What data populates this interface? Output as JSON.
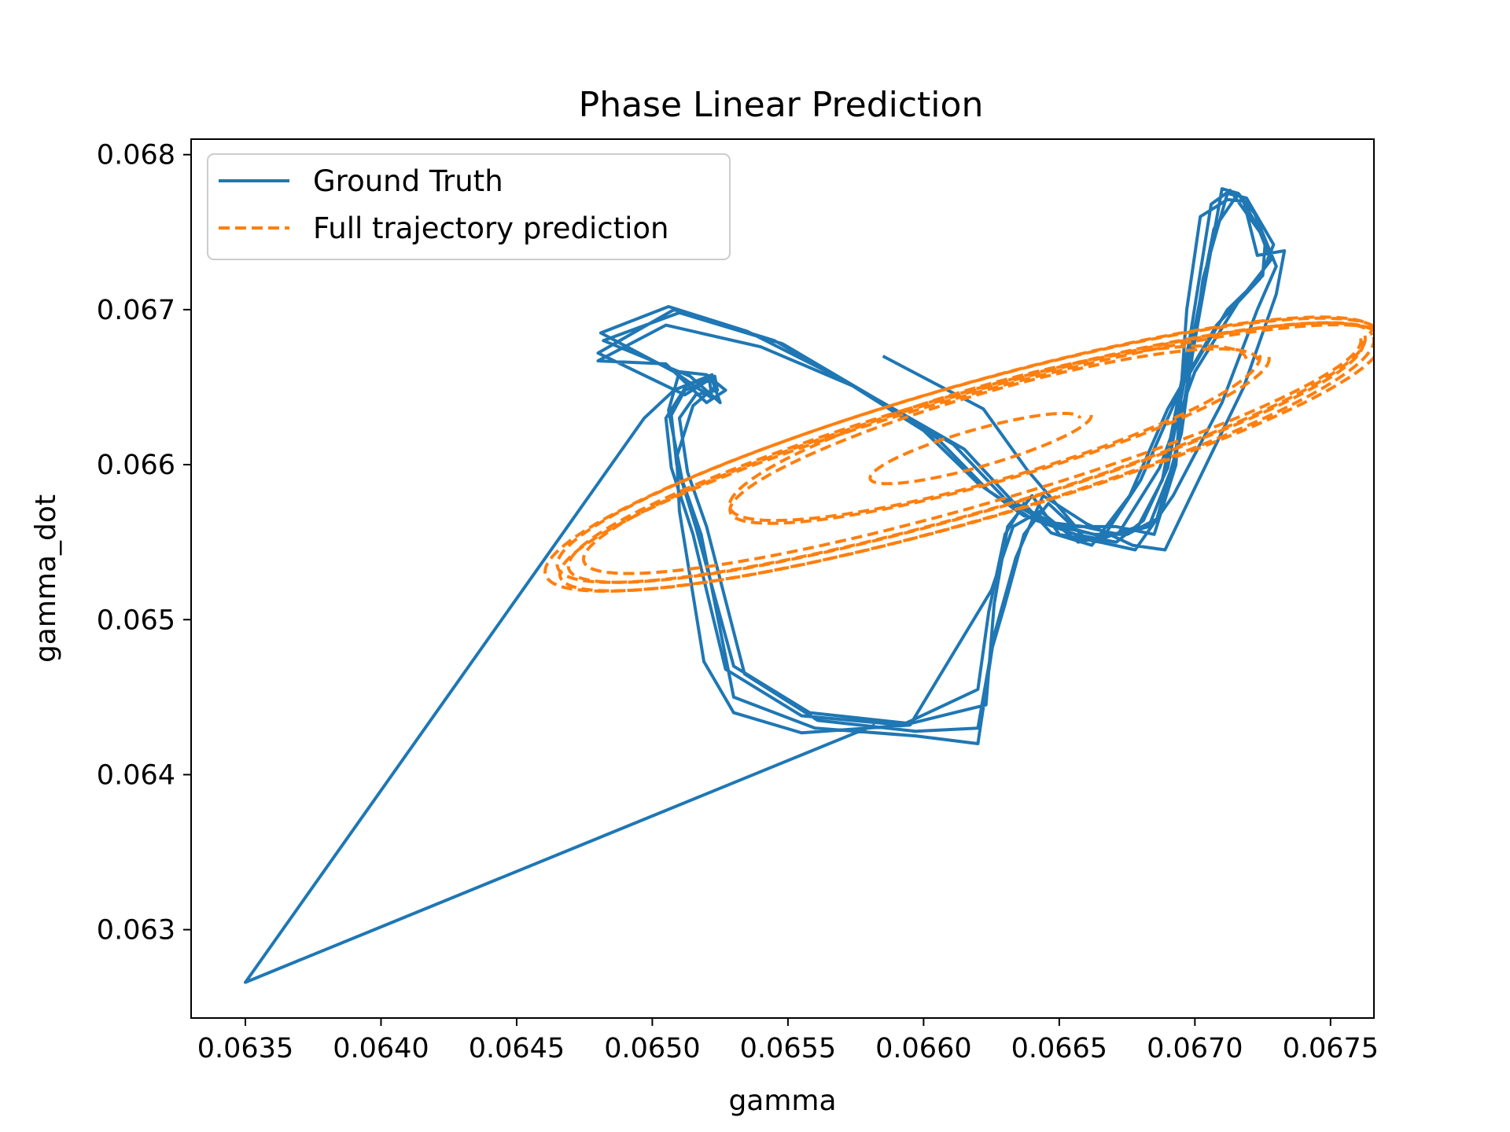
{
  "chart_data": {
    "type": "line",
    "title": "Phase Linear Prediction",
    "xlabel": "gamma",
    "ylabel": "gamma_dot",
    "xlim": [
      0.0633,
      0.06766
    ],
    "ylim": [
      0.06243,
      0.0681
    ],
    "xticks": [
      "0.0635",
      "0.0640",
      "0.0645",
      "0.0650",
      "0.0655",
      "0.0660",
      "0.0665",
      "0.0670",
      "0.0675"
    ],
    "xtick_values": [
      0.0635,
      0.064,
      0.0645,
      0.065,
      0.0655,
      0.066,
      0.0665,
      0.067,
      0.0675
    ],
    "yticks": [
      "0.063",
      "0.064",
      "0.065",
      "0.066",
      "0.067",
      "0.068"
    ],
    "ytick_values": [
      0.063,
      0.064,
      0.065,
      0.066,
      0.067,
      0.068
    ],
    "grid": false,
    "legend_position": "upper-left",
    "series": [
      {
        "name": "Ground Truth",
        "color": "#1f77b4",
        "style": "solid",
        "x": [
          0.06585,
          0.06622,
          0.06638,
          0.06656,
          0.06671,
          0.06685,
          0.06693,
          0.06697,
          0.06702,
          0.06712,
          0.06718,
          0.06723,
          0.06733,
          0.0673,
          0.06718,
          0.067,
          0.06689,
          0.06677,
          0.0666,
          0.06644,
          0.06634,
          0.06626,
          0.0662,
          0.06597,
          0.0656,
          0.0653,
          0.06518,
          0.06511,
          0.06506,
          0.0651,
          0.0652,
          0.06527,
          0.0652,
          0.06505,
          0.0648,
          0.06505,
          0.0654,
          0.06575,
          0.06605,
          0.06624,
          0.0664,
          0.06656,
          0.06671,
          0.06681,
          0.0669,
          0.06699,
          0.06707,
          0.06716,
          0.06722,
          0.0673,
          0.06723,
          0.0671,
          0.06692,
          0.06678,
          0.0666,
          0.06646,
          0.06637,
          0.0663,
          0.06625,
          0.0662,
          0.06597,
          0.06561,
          0.06534,
          0.0652,
          0.06513,
          0.0651,
          0.06516,
          0.06524,
          0.06523,
          0.06512,
          0.0648,
          0.06508,
          0.06545,
          0.0658,
          0.06611,
          0.0663,
          0.06645,
          0.06659,
          0.06672,
          0.06683,
          0.06692,
          0.06702,
          0.0671,
          0.06716,
          0.06726,
          0.06725,
          0.06712,
          0.06695,
          0.0668,
          0.06665,
          0.0665,
          0.0664,
          0.06631,
          0.06626,
          0.06623,
          0.06595,
          0.06558,
          0.0653,
          0.06516,
          0.06509,
          0.06507,
          0.06512,
          0.06522,
          0.06525,
          0.06514,
          0.06482,
          0.0651,
          0.06548,
          0.06582,
          0.06615,
          0.06633,
          0.0665,
          0.06663,
          0.06675,
          0.06686,
          0.06695,
          0.06703,
          0.06712,
          0.06719,
          0.06729,
          0.06724,
          0.06708,
          0.0669,
          0.06676,
          0.06662,
          0.06647,
          0.06637,
          0.0663,
          0.06624,
          0.0662,
          0.06592,
          0.06555,
          0.06527,
          0.06515,
          0.06507,
          0.06505,
          0.06513,
          0.06521,
          0.06522,
          0.06508,
          0.06481,
          0.06506,
          0.06535,
          0.0657,
          0.066,
          0.0662,
          0.06637,
          0.06652,
          0.06667,
          0.06679,
          0.06688,
          0.06698,
          0.06706,
          0.06713,
          0.06724,
          0.06728,
          0.06716,
          0.067,
          0.06687,
          0.06672,
          0.06657,
          0.06643,
          0.06633,
          0.06625,
          0.06595,
          0.06555,
          0.0653,
          0.06519,
          0.0651,
          0.06509,
          0.06515,
          0.06523,
          0.06522,
          0.06508,
          0.06497,
          0.0635,
          0.06582
        ],
        "y": [
          0.0667,
          0.06636,
          0.06597,
          0.0656,
          0.0656,
          0.06555,
          0.066,
          0.067,
          0.0676,
          0.06771,
          0.0677,
          0.06735,
          0.06738,
          0.0671,
          0.0665,
          0.06585,
          0.06545,
          0.06548,
          0.06562,
          0.0658,
          0.0654,
          0.0649,
          0.0642,
          0.06425,
          0.0643,
          0.0645,
          0.06555,
          0.0659,
          0.06635,
          0.0666,
          0.06658,
          0.06648,
          0.0664,
          0.06665,
          0.06667,
          0.0669,
          0.06676,
          0.0665,
          0.06617,
          0.06583,
          0.06565,
          0.06555,
          0.0655,
          0.06564,
          0.06598,
          0.0668,
          0.06752,
          0.06775,
          0.06762,
          0.06728,
          0.067,
          0.0664,
          0.0658,
          0.06545,
          0.06552,
          0.06575,
          0.06555,
          0.0651,
          0.0648,
          0.0643,
          0.06428,
          0.06435,
          0.06465,
          0.0656,
          0.06595,
          0.0663,
          0.06645,
          0.06648,
          0.06657,
          0.06645,
          0.06672,
          0.067,
          0.0668,
          0.06645,
          0.06613,
          0.06578,
          0.06563,
          0.0656,
          0.06555,
          0.0656,
          0.066,
          0.067,
          0.06778,
          0.06775,
          0.06745,
          0.06722,
          0.067,
          0.0665,
          0.0659,
          0.0655,
          0.06555,
          0.0658,
          0.0656,
          0.0651,
          0.06445,
          0.06433,
          0.0644,
          0.0647,
          0.0656,
          0.066,
          0.06632,
          0.06648,
          0.06655,
          0.0664,
          0.06657,
          0.0668,
          0.06698,
          0.06678,
          0.06643,
          0.0661,
          0.06576,
          0.0656,
          0.06555,
          0.06555,
          0.06565,
          0.0662,
          0.0672,
          0.06775,
          0.06772,
          0.06742,
          0.0672,
          0.0669,
          0.06636,
          0.0658,
          0.06548,
          0.06556,
          0.06575,
          0.06555,
          0.06505,
          0.06455,
          0.06432,
          0.06438,
          0.06468,
          0.06555,
          0.06598,
          0.0663,
          0.06652,
          0.06655,
          0.06643,
          0.0666,
          0.06685,
          0.06702,
          0.06686,
          0.06655,
          0.06622,
          0.06588,
          0.06567,
          0.0656,
          0.06553,
          0.0656,
          0.0659,
          0.0668,
          0.06768,
          0.06777,
          0.0675,
          0.06732,
          0.06705,
          0.0666,
          0.06598,
          0.06556,
          0.0655,
          0.0657,
          0.0656,
          0.06519,
          0.06432,
          0.06427,
          0.0644,
          0.06473,
          0.0657,
          0.06605,
          0.06638,
          0.0665,
          0.06658,
          0.06648,
          0.0663,
          0.06266,
          0.06432
        ]
      },
      {
        "name": "Full trajectory prediction",
        "color": "#ff7f0e",
        "style": "dashed"
      }
    ]
  }
}
